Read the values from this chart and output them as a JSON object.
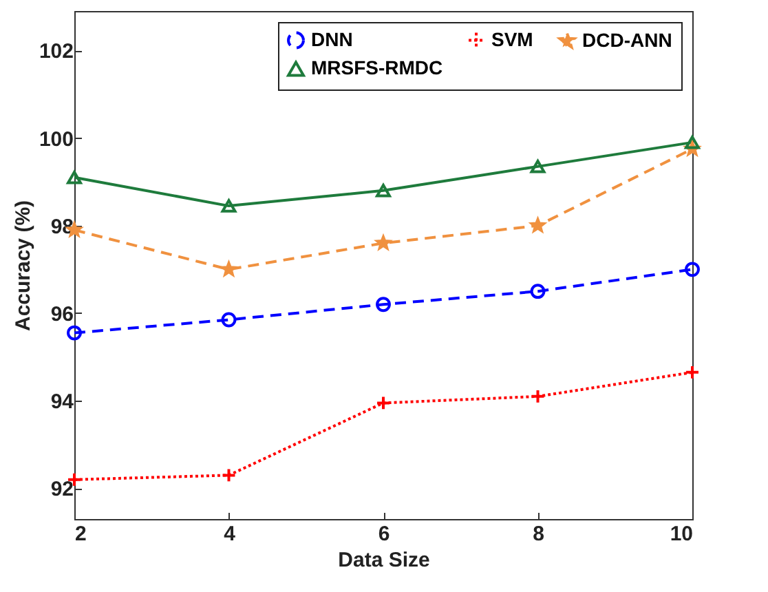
{
  "chart_data": {
    "type": "line",
    "xlabel": "Data Size",
    "ylabel": "Accuracy (%)",
    "x": [
      2,
      4,
      6,
      8,
      10
    ],
    "series": [
      {
        "name": "DNN",
        "color": "#0000ff",
        "values": [
          95.55,
          95.85,
          96.2,
          96.5,
          97.0
        ],
        "marker": "circle",
        "line_style": "dashed"
      },
      {
        "name": "SVM",
        "color": "#ff0000",
        "values": [
          92.2,
          92.3,
          93.95,
          94.1,
          94.65
        ],
        "marker": "cross",
        "line_style": "dotted"
      },
      {
        "name": "DCD-ANN",
        "color": "#f0913f",
        "values": [
          97.9,
          97.0,
          97.6,
          98.0,
          99.75
        ],
        "marker": "star",
        "line_style": "dashed"
      },
      {
        "name": "MRSFS-RMDC",
        "color": "#1e7b3c",
        "values": [
          99.1,
          98.45,
          98.8,
          99.35,
          99.9
        ],
        "marker": "triangle",
        "line_style": "solid"
      }
    ],
    "xlim": [
      2,
      10
    ],
    "ylim": [
      91.3,
      102.9
    ],
    "xticks": [
      2,
      4,
      6,
      8,
      10
    ],
    "yticks": [
      92,
      94,
      96,
      98,
      100,
      102
    ],
    "grid": false,
    "legend": "top right"
  }
}
